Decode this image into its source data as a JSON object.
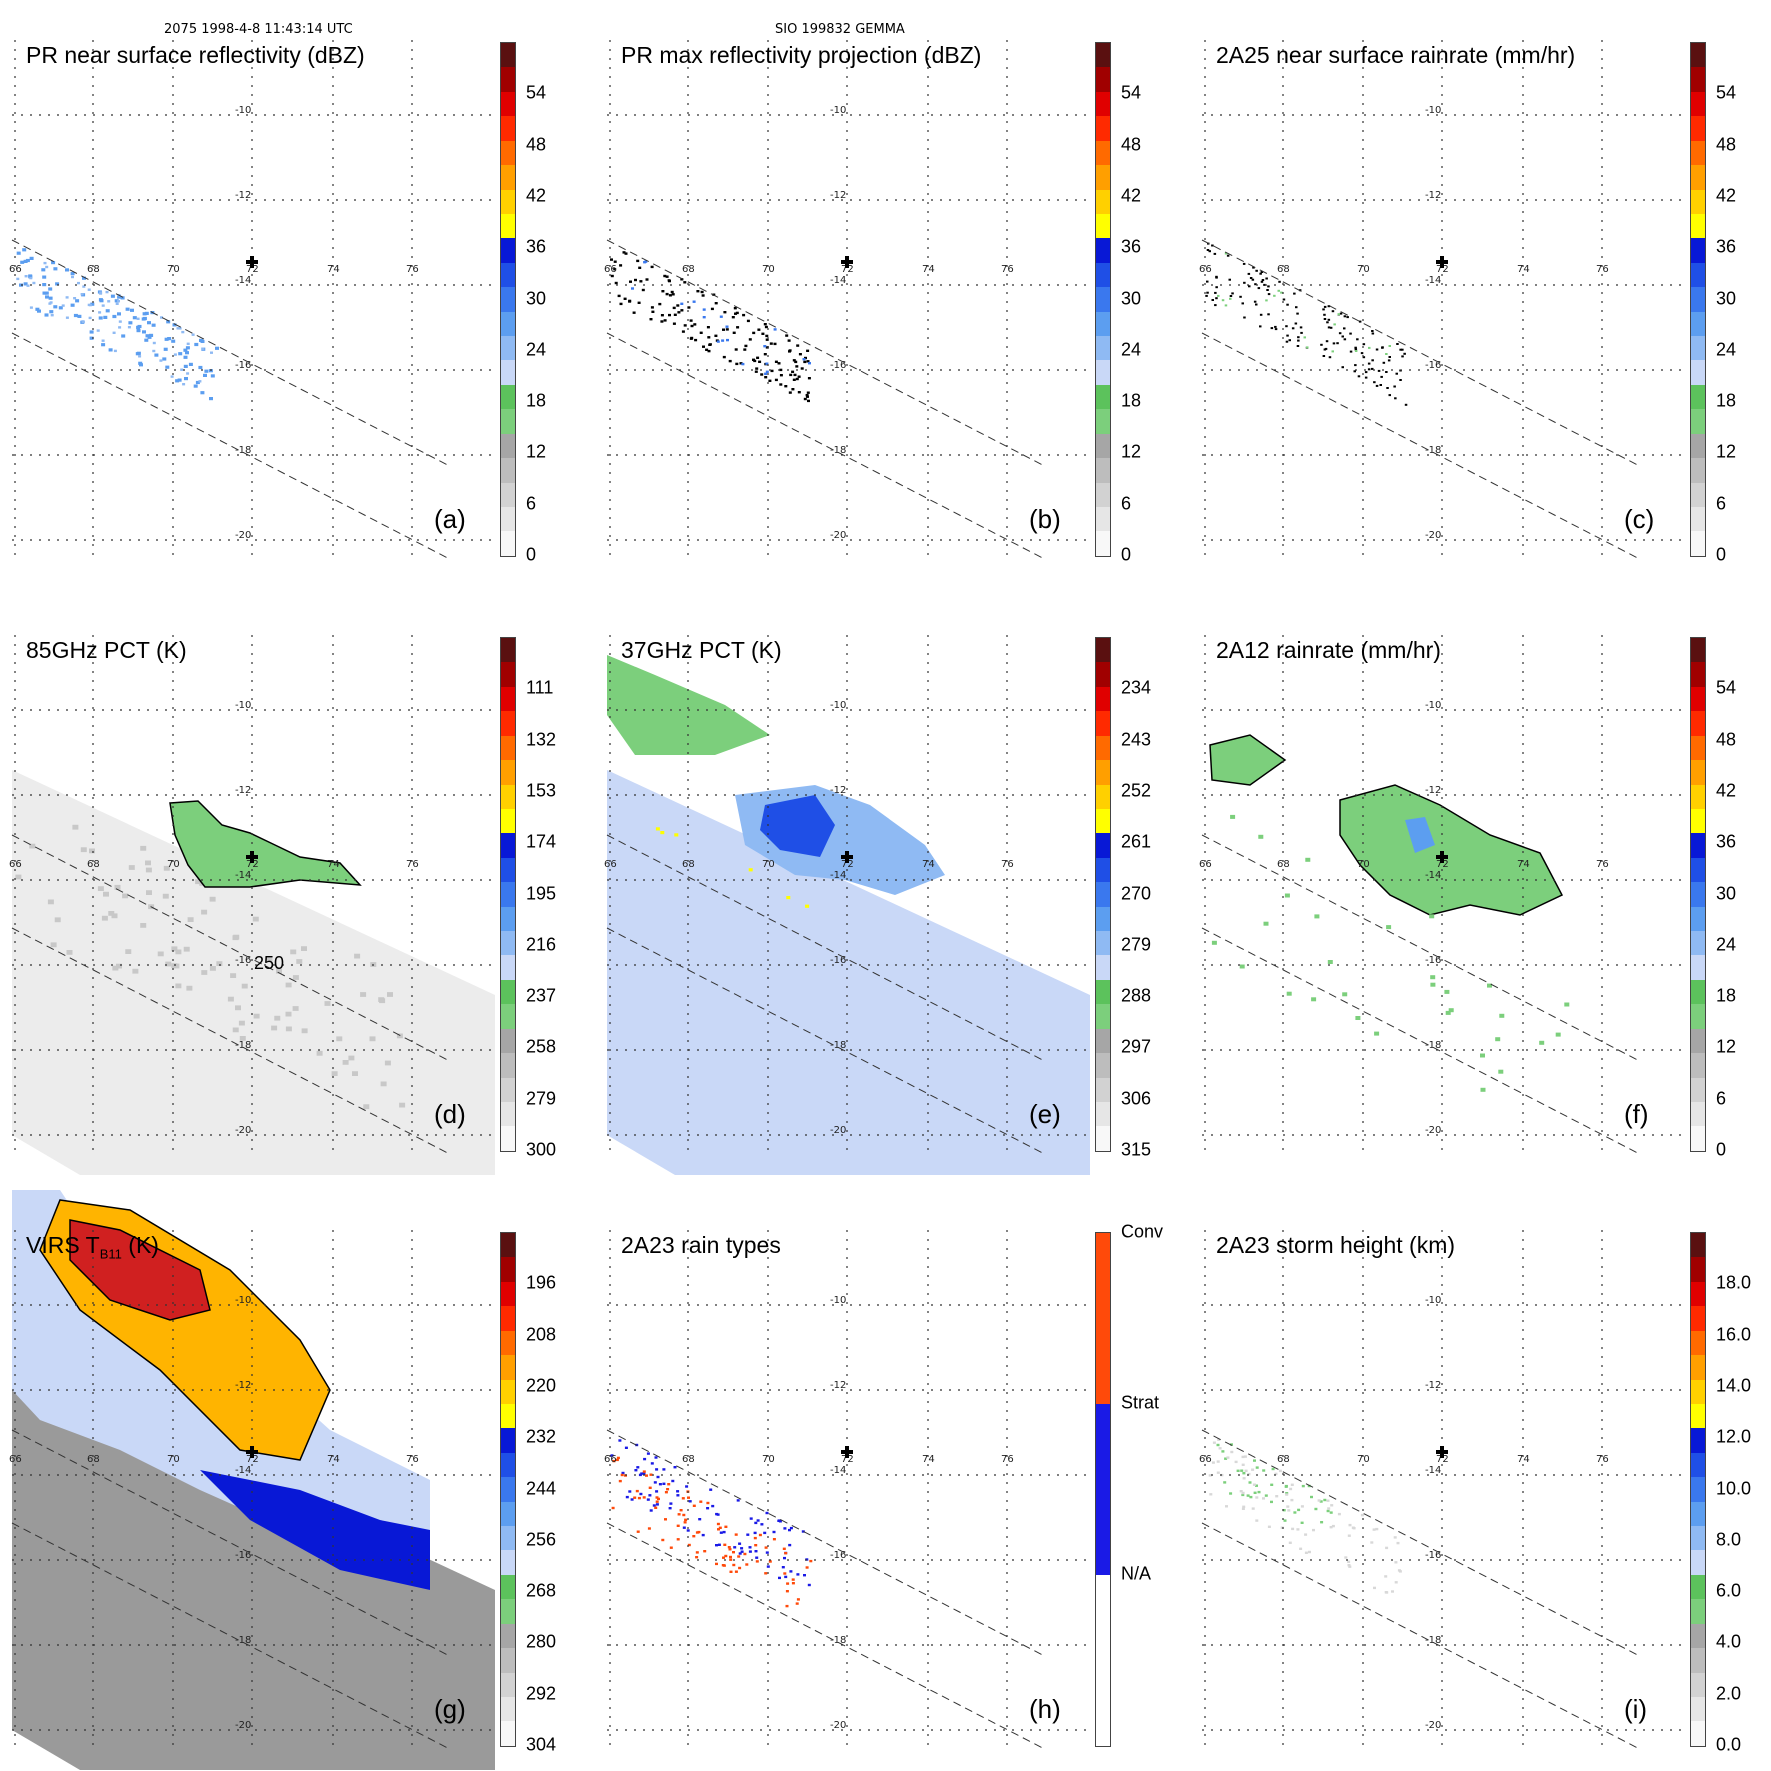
{
  "header": {
    "left": "2075 1998-4-8 11:43:14 UTC",
    "middle": "SIO 199832 GEMMA"
  },
  "panels": [
    {
      "id": "a",
      "title": "PR near surface reflectivity (dBZ)",
      "label": "(a)",
      "colorbar": {
        "min": 0,
        "max": 60,
        "ticks": [
          "54",
          "48",
          "42",
          "36",
          "30",
          "24",
          "18",
          "12",
          "6",
          "0"
        ]
      },
      "field": "pr-reflectivity",
      "center_marker": true
    },
    {
      "id": "b",
      "title": "PR max reflectivity projection (dBZ)",
      "label": "(b)",
      "colorbar": {
        "min": 0,
        "max": 60,
        "ticks": [
          "54",
          "48",
          "42",
          "36",
          "30",
          "24",
          "18",
          "12",
          "6",
          "0"
        ]
      },
      "field": "pr-max-projection",
      "center_marker": true
    },
    {
      "id": "c",
      "title": "2A25 near surface rainrate (mm/hr)",
      "label": "(c)",
      "colorbar": {
        "min": 0,
        "max": 60,
        "ticks": [
          "54",
          "48",
          "42",
          "36",
          "30",
          "24",
          "18",
          "12",
          "6",
          "0"
        ]
      },
      "field": "2a25-rainrate",
      "center_marker": true
    },
    {
      "id": "d",
      "title": "85GHz PCT (K)",
      "label": "(d)",
      "colorbar": {
        "min": 90,
        "max": 300,
        "ticks": [
          "111",
          "132",
          "153",
          "174",
          "195",
          "216",
          "237",
          "258",
          "279",
          "300"
        ]
      },
      "field": "85ghz-pct",
      "contour_label": "250",
      "center_marker": true
    },
    {
      "id": "e",
      "title": "37GHz PCT (K)",
      "label": "(e)",
      "colorbar": {
        "min": 225,
        "max": 315,
        "ticks": [
          "234",
          "243",
          "252",
          "261",
          "270",
          "279",
          "288",
          "297",
          "306",
          "315"
        ]
      },
      "field": "37ghz-pct",
      "center_marker": true
    },
    {
      "id": "f",
      "title": "2A12 rainrate (mm/hr)",
      "label": "(f)",
      "colorbar": {
        "min": 0,
        "max": 60,
        "ticks": [
          "54",
          "48",
          "42",
          "36",
          "30",
          "24",
          "18",
          "12",
          "6",
          "0"
        ]
      },
      "field": "2a12-rainrate",
      "center_marker": true
    },
    {
      "id": "g",
      "title": "VIRS T",
      "title_sub": "B11",
      "title_suffix": " (K)",
      "label": "(g)",
      "colorbar": {
        "min": 184,
        "max": 304,
        "ticks": [
          "196",
          "208",
          "220",
          "232",
          "244",
          "256",
          "268",
          "280",
          "292",
          "304"
        ]
      },
      "field": "virs-tb11",
      "center_marker": true
    },
    {
      "id": "h",
      "title": "2A23 rain types",
      "label": "(h)",
      "colorbar": {
        "categorical": true,
        "ticks": [
          "Conv",
          "Strat",
          "N/A"
        ]
      },
      "field": "2a23-raintype",
      "center_marker": true
    },
    {
      "id": "i",
      "title": "2A23 storm height (km)",
      "label": "(i)",
      "colorbar": {
        "min": 0,
        "max": 20,
        "ticks": [
          "18.0",
          "16.0",
          "14.0",
          "12.0",
          "10.0",
          "8.0",
          "6.0",
          "4.0",
          "2.0",
          "0.0"
        ]
      },
      "field": "2a23-stormheight",
      "center_marker": true
    }
  ],
  "map": {
    "lat_labels": [
      "-10",
      "-12",
      "-14",
      "-16",
      "-18",
      "-20"
    ],
    "lon_labels": [
      "66",
      "68",
      "70",
      "72",
      "74",
      "76"
    ],
    "continuous_palette": [
      "#f8f8f8",
      "#e6e6e6",
      "#d2d2d2",
      "#bdbdbd",
      "#a6a6a6",
      "#7ccf7c",
      "#5cc25c",
      "#c9d8f7",
      "#8fbaf3",
      "#5c9ef0",
      "#3a78ee",
      "#1f4fe6",
      "#0818d6",
      "#ffff00",
      "#ffd000",
      "#ff9f00",
      "#ff6a00",
      "#ff2a00",
      "#e00000",
      "#a00000",
      "#5a1010"
    ],
    "raintype_colors": {
      "Conv": "#ff4a0a",
      "Strat": "#1a1ae6",
      "N/A": "#ffffff"
    }
  }
}
